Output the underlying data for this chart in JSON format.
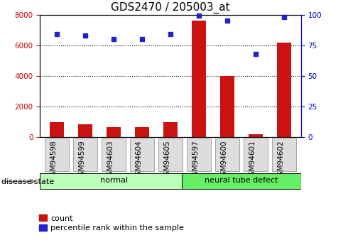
{
  "title": "GDS2470 / 205003_at",
  "samples": [
    "GSM94598",
    "GSM94599",
    "GSM94603",
    "GSM94604",
    "GSM94605",
    "GSM94597",
    "GSM94600",
    "GSM94601",
    "GSM94602"
  ],
  "counts": [
    1000,
    850,
    650,
    650,
    1000,
    7600,
    4000,
    200,
    6200
  ],
  "percentiles": [
    84,
    83,
    80,
    80,
    84,
    99,
    95,
    68,
    98
  ],
  "groups": [
    {
      "label": "normal",
      "start": 0,
      "end": 5,
      "color": "#bbffbb"
    },
    {
      "label": "neural tube defect",
      "start": 5,
      "end": 9,
      "color": "#66ee66"
    }
  ],
  "bar_color": "#cc1111",
  "dot_color": "#2222cc",
  "left_axis_color": "#cc0000",
  "right_axis_color": "#0000cc",
  "ylim_left": [
    0,
    8000
  ],
  "ylim_right": [
    0,
    100
  ],
  "yticks_left": [
    0,
    2000,
    4000,
    6000,
    8000
  ],
  "yticks_right": [
    0,
    25,
    50,
    75,
    100
  ],
  "grid_color": "#000000",
  "background_color": "#ffffff",
  "legend_count_label": "count",
  "legend_pct_label": "percentile rank within the sample",
  "disease_state_label": "disease state",
  "bar_width": 0.5,
  "title_fontsize": 11,
  "tick_label_fontsize": 7.5,
  "axis_label_fontsize": 8,
  "xtick_box_color": "#dddddd",
  "xtick_box_border": "#999999"
}
